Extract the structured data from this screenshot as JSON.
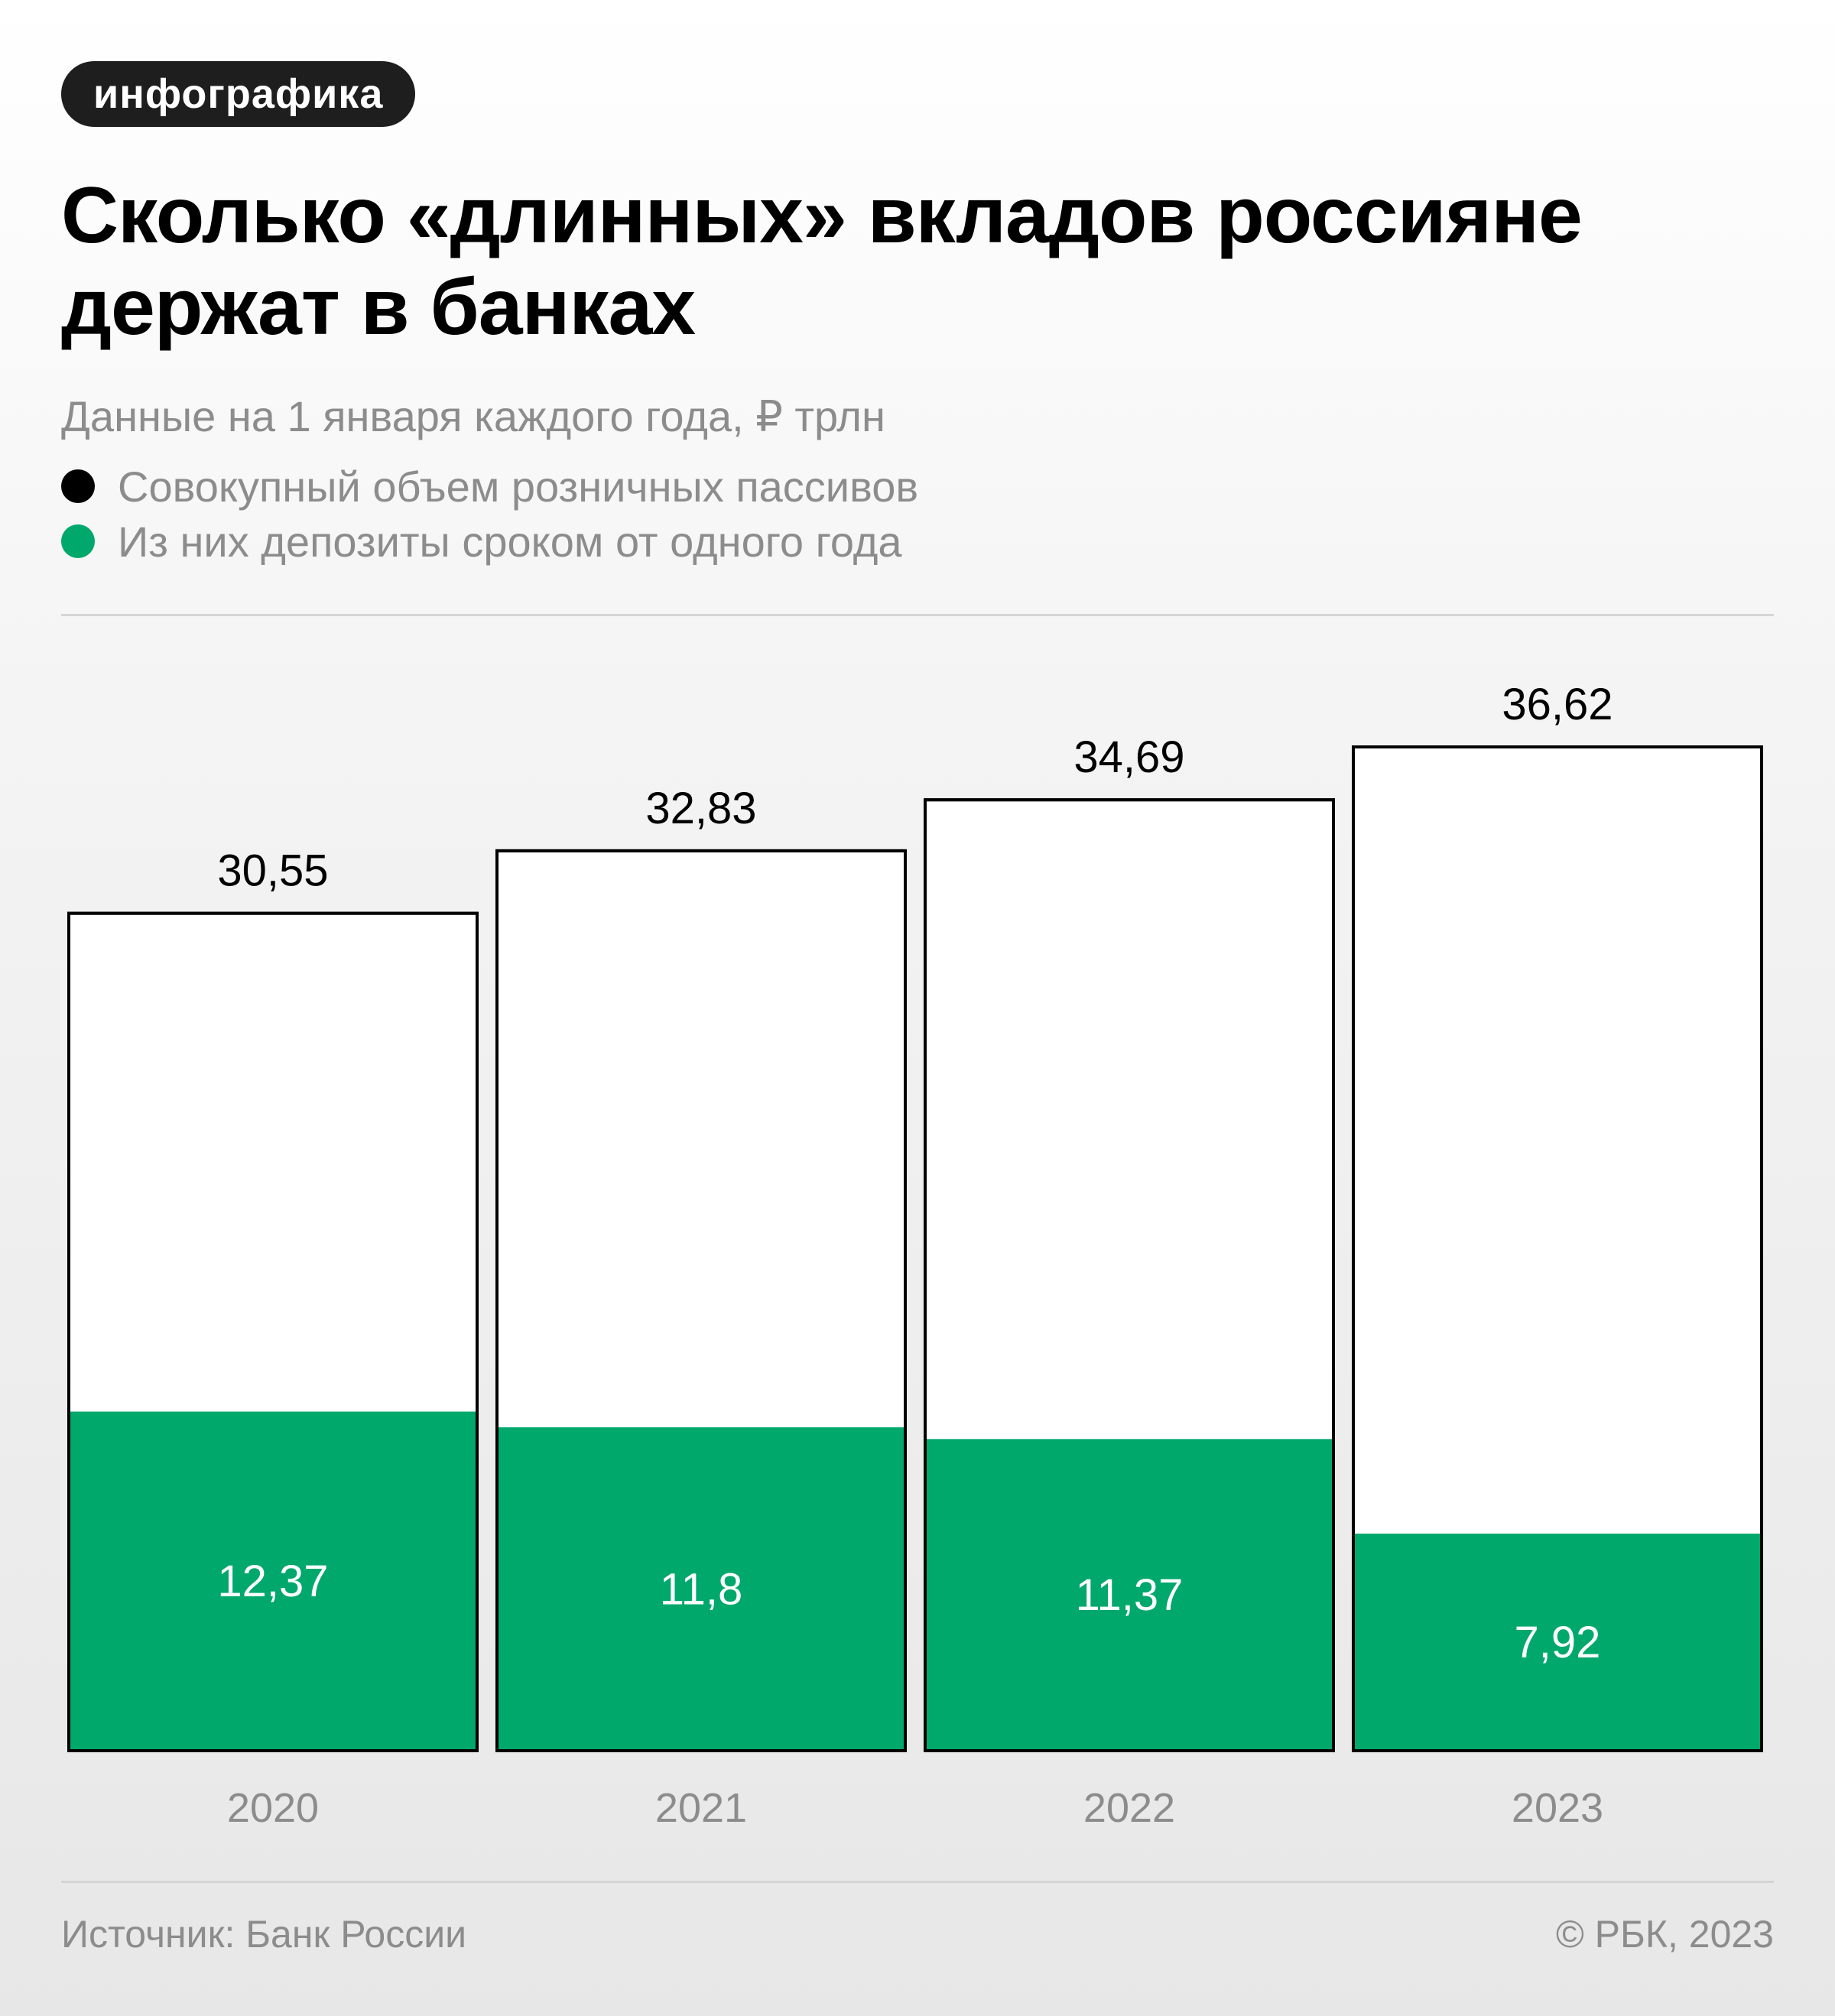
{
  "tag": "инфографика",
  "title": "Сколько «длинных» вкладов россияне держат в банках",
  "subtitle": "Данные на 1 января каждого года, ₽ трлн",
  "legend": [
    {
      "label": "Совокупный объем розничных пассивов",
      "color": "#000000"
    },
    {
      "label": "Из них депозиты сроком от одного года",
      "color": "#00a86b"
    }
  ],
  "chart_data": {
    "type": "bar",
    "categories": [
      "2020",
      "2021",
      "2022",
      "2023"
    ],
    "series": [
      {
        "name": "Совокупный объем розничных пассивов",
        "values": [
          30.55,
          32.83,
          34.69,
          36.62
        ],
        "labels": [
          "30,55",
          "32,83",
          "34,69",
          "36,62"
        ],
        "color": "#ffffff"
      },
      {
        "name": "Из них депозиты сроком от одного года",
        "values": [
          12.37,
          11.8,
          11.37,
          7.92
        ],
        "labels": [
          "12,37",
          "11,8",
          "11,37",
          "7,92"
        ],
        "color": "#00a86b"
      }
    ],
    "ylim": [
      0,
      36.62
    ],
    "grid": false,
    "legend": "top-left"
  },
  "footer": {
    "source": "Источник: Банк России",
    "copyright": "© РБК, 2023"
  }
}
